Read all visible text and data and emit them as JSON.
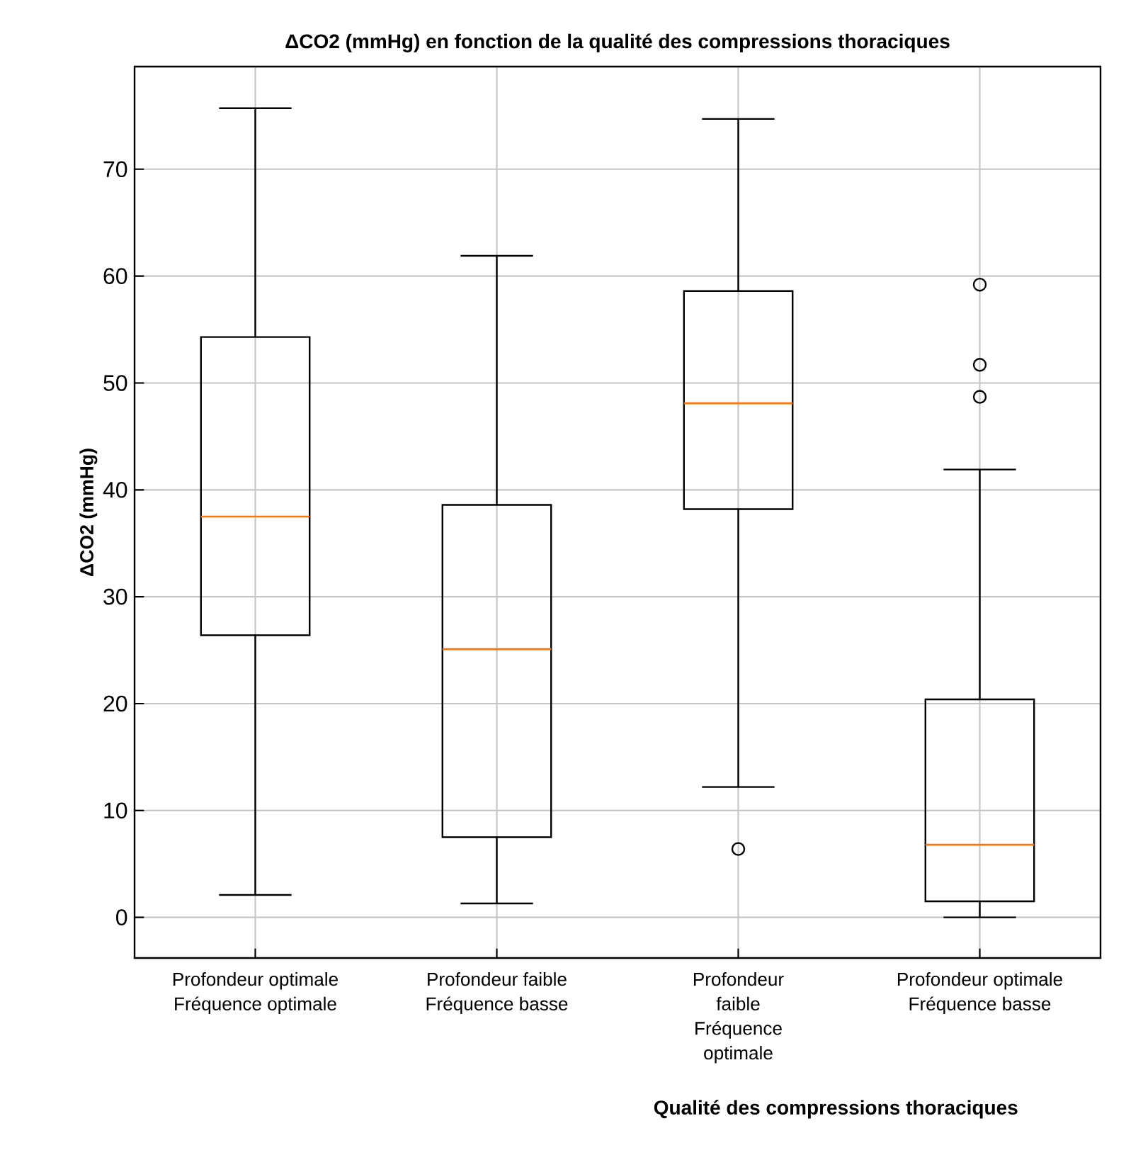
{
  "chart_data": {
    "type": "box",
    "title": "ΔCO2 (mmHg) en fonction de la qualité des compressions thoraciques",
    "xlabel": "Qualité des compressions thoraciques",
    "ylabel": "ΔCO2 (mmHg)",
    "categories": [
      "Profondeur optimale Fréquence optimale",
      "Profondeur faible Fréquence basse",
      "Profondeur faible Fréquence optimale",
      "Profondeur optimale Fréquence basse"
    ],
    "boxes": [
      {
        "low": 2.1,
        "q1": 26.4,
        "median": 37.5,
        "q3": 54.3,
        "high": 75.7
      },
      {
        "low": 1.3,
        "q1": 7.5,
        "median": 25.1,
        "q3": 38.6,
        "high": 61.9
      },
      {
        "low": 12.2,
        "q1": 38.2,
        "median": 48.1,
        "q3": 58.6,
        "high": 74.7,
        "outliers": [
          6.4
        ]
      },
      {
        "low": 0,
        "q1": 1.5,
        "median": 6.8,
        "q3": 20.4,
        "high": 41.9,
        "outliers": [
          48.7,
          51.7,
          59.2
        ]
      }
    ],
    "ylim": [
      -3.8,
      79.6
    ],
    "yticks": [
      0,
      10,
      20,
      30,
      40,
      50,
      60,
      70
    ],
    "grid": true
  }
}
